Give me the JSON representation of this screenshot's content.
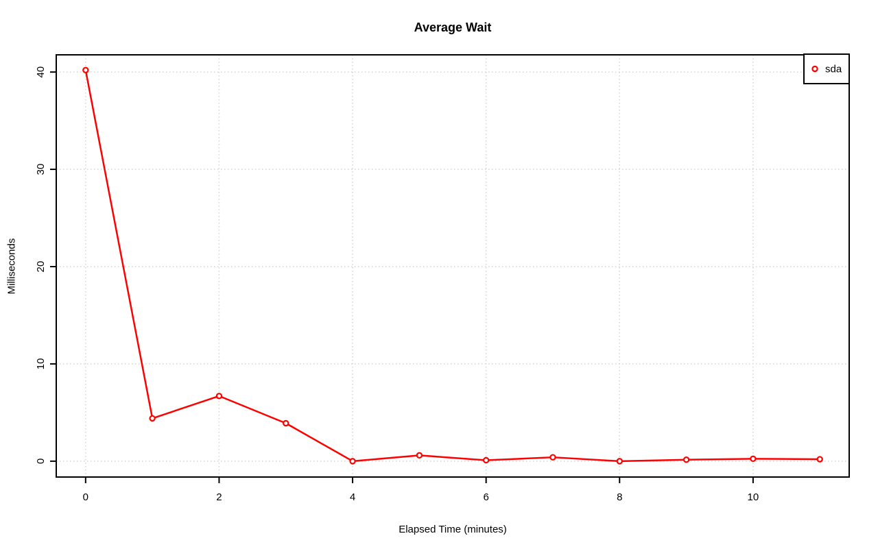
{
  "chart_data": {
    "type": "line",
    "title": "Average Wait",
    "xlabel": "Elapsed Time (minutes)",
    "ylabel": "Milliseconds",
    "x": [
      0,
      1,
      2,
      3,
      4,
      5,
      6,
      7,
      8,
      9,
      10,
      11
    ],
    "series": [
      {
        "name": "sda",
        "color": "#ff0000",
        "marker": "open-circle",
        "values": [
          40.2,
          4.4,
          6.7,
          3.9,
          0.0,
          0.6,
          0.1,
          0.4,
          0.0,
          0.15,
          0.25,
          0.2
        ]
      }
    ],
    "xticks": [
      0,
      2,
      4,
      6,
      8,
      10
    ],
    "xtick_labels": [
      "0",
      "2",
      "4",
      "6",
      "8",
      "10"
    ],
    "yticks": [
      0,
      10,
      20,
      30,
      40
    ],
    "ytick_labels": [
      "0",
      "10",
      "20",
      "30",
      "40"
    ],
    "xlim": [
      -0.44,
      11.44
    ],
    "ylim": [
      -1.63,
      41.77
    ],
    "grid": true,
    "grid_style": "dotted",
    "grid_color": "#d3d3d3",
    "axis_color": "#000000",
    "background": "#ffffff",
    "legend_position": "top-right",
    "legend_entries": [
      "sda"
    ]
  }
}
